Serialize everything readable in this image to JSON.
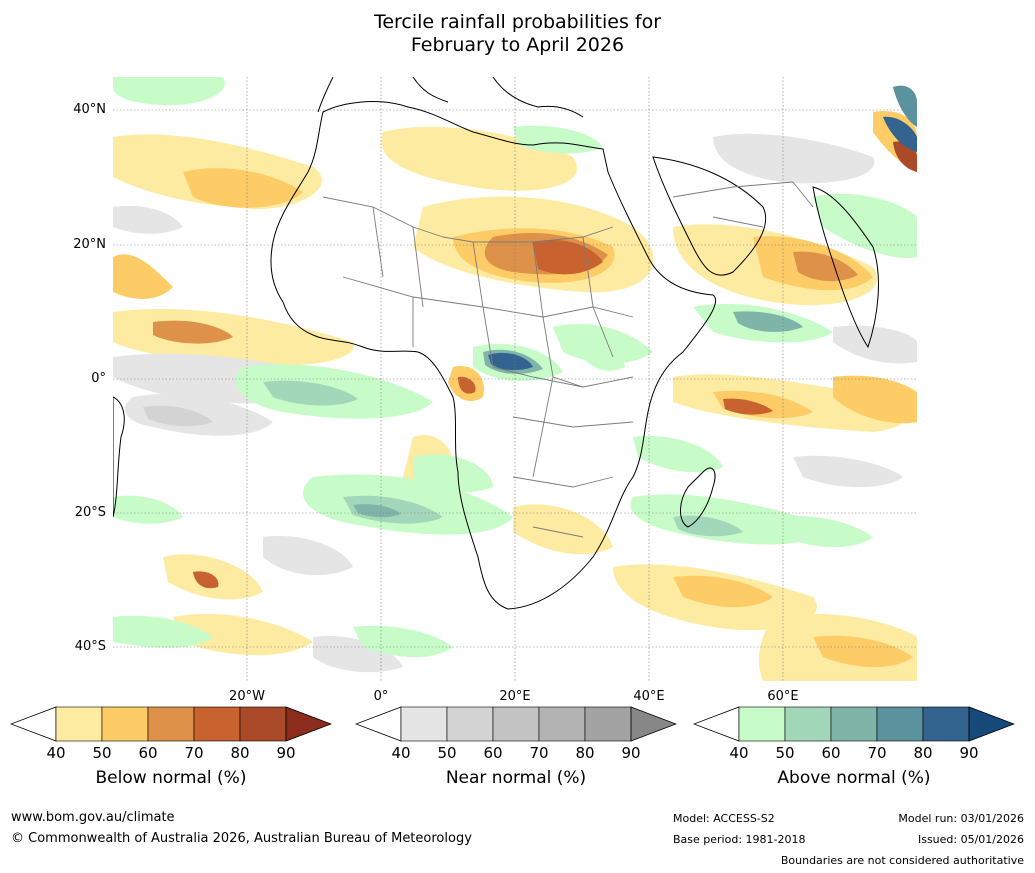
{
  "title_line1": "Tercile rainfall probabilities for",
  "title_line2": "February to April 2026",
  "map": {
    "lat_labels": [
      "40°N",
      "20°N",
      "0°",
      "20°S",
      "40°S"
    ],
    "lon_labels": [
      "20°W",
      "0°",
      "20°E",
      "40°E",
      "60°E"
    ]
  },
  "colorbars": [
    {
      "title": "Below normal (%)",
      "ticks": [
        "40",
        "50",
        "60",
        "70",
        "80",
        "90"
      ],
      "colors": [
        "#ffffff",
        "#feeba2",
        "#fdcc67",
        "#dd9149",
        "#c8622e",
        "#aa4a28",
        "#8b2c1c"
      ]
    },
    {
      "title": "Near normal (%)",
      "ticks": [
        "40",
        "50",
        "60",
        "70",
        "80",
        "90"
      ],
      "colors": [
        "#ffffff",
        "#e5e5e5",
        "#d3d3d3",
        "#c3c3c3",
        "#b3b3b3",
        "#a3a3a3",
        "#878787"
      ]
    },
    {
      "title": "Above normal (%)",
      "ticks": [
        "40",
        "50",
        "60",
        "70",
        "80",
        "90"
      ],
      "colors": [
        "#ffffff",
        "#c7fcc9",
        "#a3d7b9",
        "#7fb4a9",
        "#5a929d",
        "#32648f",
        "#164a7a"
      ]
    }
  ],
  "footer": {
    "website": "www.bom.gov.au/climate",
    "copyright": "© Commonwealth of Australia 2026, Australian Bureau of Meteorology",
    "model": "Model: ACCESS-S2",
    "base_period": "Base period: 1981-2018",
    "model_run": "Model run: 03/01/2026",
    "issued": "Issued: 05/01/2026",
    "boundaries": "Boundaries are not considered authoritative"
  }
}
